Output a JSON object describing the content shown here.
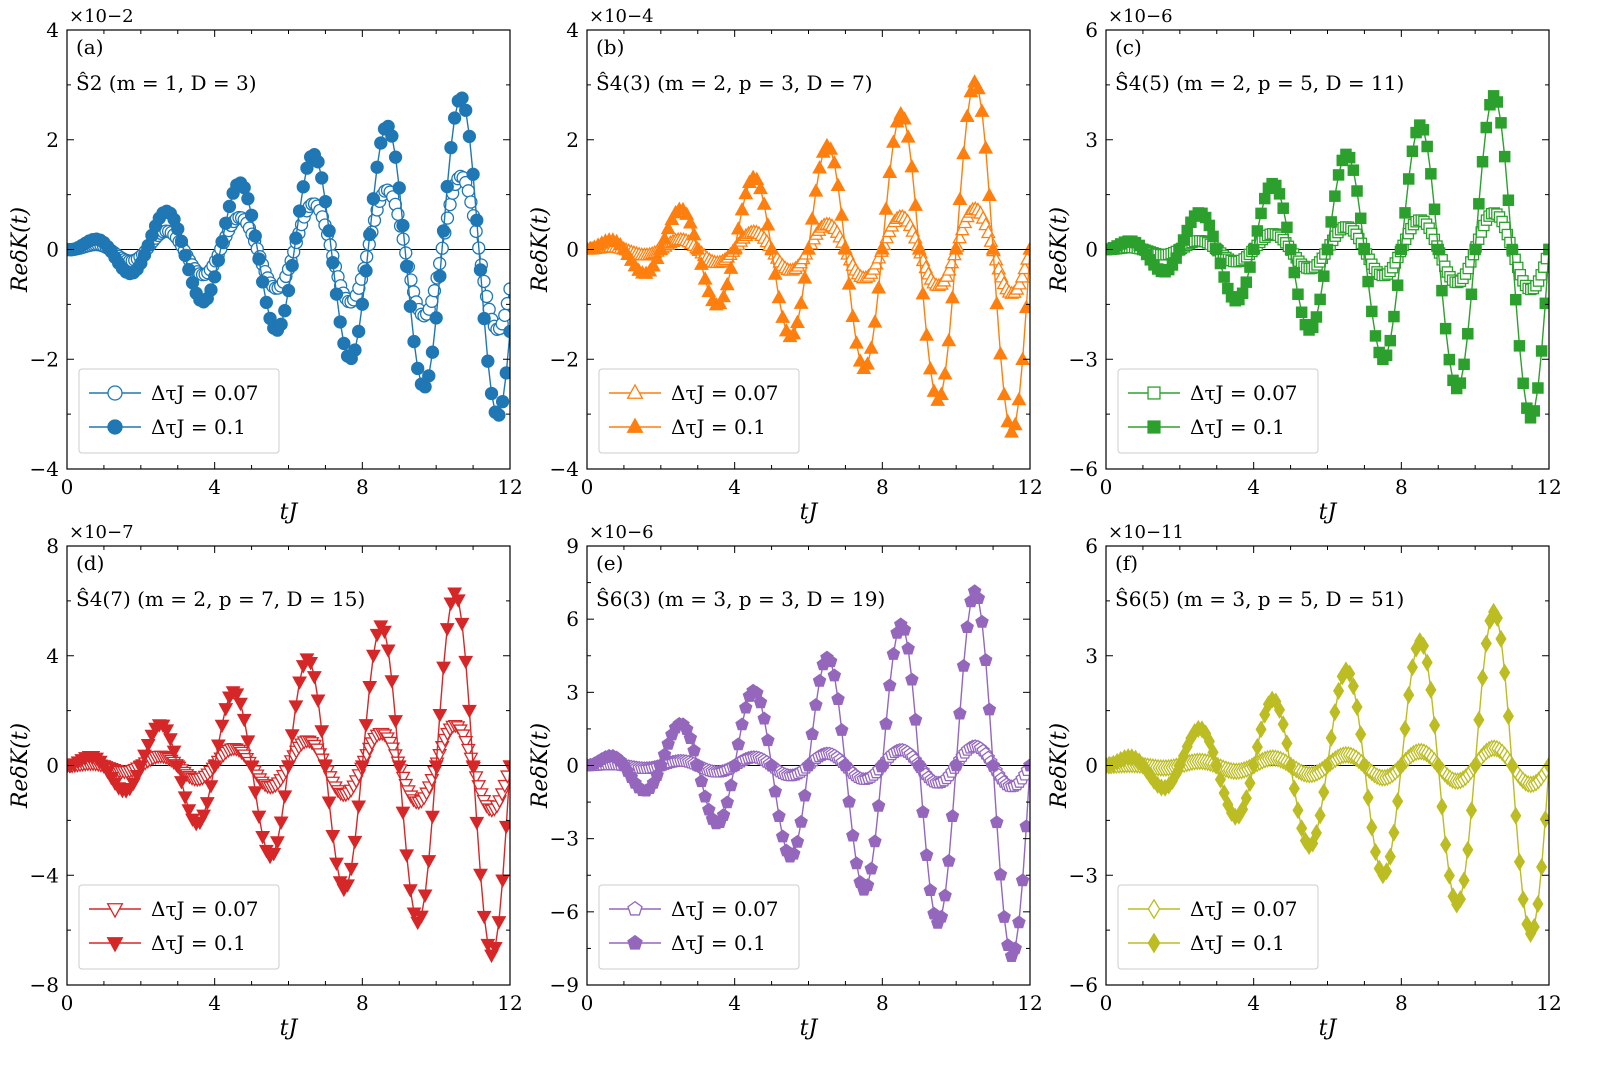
{
  "figure": {
    "xlabel": "tJ",
    "ylabel": "ReδK(t)",
    "xlim": [
      0,
      12
    ],
    "xticks": [
      0,
      4,
      8,
      12
    ],
    "legend": [
      "ΔτJ = 0.07",
      "ΔτJ = 0.1"
    ],
    "legend_placement": "lower-left"
  },
  "chart_data": [
    {
      "type": "line",
      "panel": "(a)",
      "operator": "Ŝ2 (m = 1, D = 3)",
      "scale": "×10−2",
      "color": "#1f77b4",
      "marker": "circle",
      "ylim": [
        -4,
        4
      ],
      "yticks": [
        -4,
        -2,
        0,
        2,
        4
      ],
      "ytick_labels": [
        "−4",
        "−2",
        "0",
        "2",
        "4"
      ],
      "omega": 3.1416,
      "phase": 0.5,
      "series": [
        {
          "name": "ΔτJ = 0.07",
          "filled": false,
          "growth": 0.125,
          "n": 170
        },
        {
          "name": "ΔτJ = 0.1",
          "filled": true,
          "growth": 0.26,
          "n": 120
        }
      ]
    },
    {
      "type": "line",
      "panel": "(b)",
      "operator": "Ŝ4(3) (m = 2, p = 3, D = 7)",
      "scale": "×10−4",
      "color": "#ff7f0e",
      "marker": "triangle-up",
      "ylim": [
        -4,
        4
      ],
      "yticks": [
        -4,
        -2,
        0,
        2,
        4
      ],
      "ytick_labels": [
        "−4",
        "−2",
        "0",
        "2",
        "4"
      ],
      "omega": 3.1416,
      "phase": 0.0,
      "series": [
        {
          "name": "ΔτJ = 0.07",
          "filled": false,
          "growth": 0.07,
          "n": 170
        },
        {
          "name": "ΔτJ = 0.1",
          "filled": true,
          "growth": 0.29,
          "n": 120
        }
      ]
    },
    {
      "type": "line",
      "panel": "(c)",
      "operator": "Ŝ4(5) (m = 2, p = 5, D = 11)",
      "scale": "×10−6",
      "color": "#2ca02c",
      "marker": "square",
      "ylim": [
        -6,
        6
      ],
      "yticks": [
        -6,
        -3,
        0,
        3,
        6
      ],
      "ytick_labels": [
        "−6",
        "−3",
        "0",
        "3",
        "6"
      ],
      "omega": 3.1416,
      "phase": 0.0,
      "series": [
        {
          "name": "ΔτJ = 0.07",
          "filled": false,
          "growth": 0.095,
          "n": 170
        },
        {
          "name": "ΔτJ = 0.1",
          "filled": true,
          "growth": 0.4,
          "n": 120
        }
      ]
    },
    {
      "type": "line",
      "panel": "(d)",
      "operator": "Ŝ4(7) (m = 2, p = 7, D = 15)",
      "scale": "×10−7",
      "color": "#d62728",
      "marker": "triangle-down",
      "ylim": [
        -8,
        8
      ],
      "yticks": [
        -8,
        -4,
        0,
        4,
        8
      ],
      "ytick_labels": [
        "−8",
        "−4",
        "0",
        "4",
        "8"
      ],
      "omega": 3.1416,
      "phase": 0.0,
      "series": [
        {
          "name": "ΔτJ = 0.07",
          "filled": false,
          "growth": 0.14,
          "n": 170
        },
        {
          "name": "ΔτJ = 0.1",
          "filled": true,
          "growth": 0.6,
          "n": 120
        }
      ]
    },
    {
      "type": "line",
      "panel": "(e)",
      "operator": "Ŝ6(3) (m = 3, p = 3, D = 19)",
      "scale": "×10−6",
      "color": "#9467bd",
      "marker": "pentagon",
      "ylim": [
        -9,
        9
      ],
      "yticks": [
        -9,
        -6,
        -3,
        0,
        3,
        6,
        9
      ],
      "ytick_labels": [
        "−9",
        "−6",
        "−3",
        "0",
        "3",
        "6",
        "9"
      ],
      "omega": 3.1416,
      "phase": 0.0,
      "series": [
        {
          "name": "ΔτJ = 0.07",
          "filled": false,
          "growth": 0.075,
          "n": 170
        },
        {
          "name": "ΔτJ = 0.1",
          "filled": true,
          "growth": 0.68,
          "n": 120
        }
      ]
    },
    {
      "type": "line",
      "panel": "(f)",
      "operator": "Ŝ6(5) (m = 3, p = 5, D = 51)",
      "scale": "×10−11",
      "color": "#bcbd22",
      "marker": "diamond",
      "ylim": [
        -6,
        6
      ],
      "yticks": [
        -6,
        -3,
        0,
        3,
        6
      ],
      "ytick_labels": [
        "−6",
        "−3",
        "0",
        "3",
        "6"
      ],
      "omega": 3.1416,
      "phase": 0.0,
      "series": [
        {
          "name": "ΔτJ = 0.07",
          "filled": false,
          "growth": 0.045,
          "n": 170
        },
        {
          "name": "ΔτJ = 0.1",
          "filled": true,
          "growth": 0.4,
          "n": 120
        }
      ]
    }
  ]
}
